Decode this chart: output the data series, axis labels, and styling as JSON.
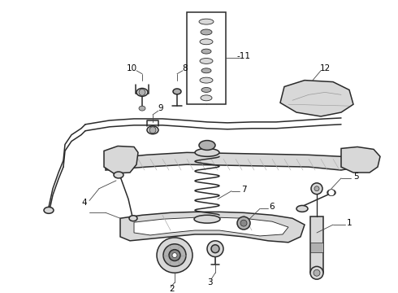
{
  "background_color": "#ffffff",
  "line_color": "#2a2a2a",
  "label_color": "#000000",
  "fig_width": 4.9,
  "fig_height": 3.6,
  "dpi": 100,
  "lw_thick": 1.8,
  "lw_med": 1.1,
  "lw_thin": 0.65,
  "gray_fill": "#d8d8d8",
  "gray_mid": "#b0b0b0",
  "gray_dark": "#888888",
  "white": "#ffffff"
}
